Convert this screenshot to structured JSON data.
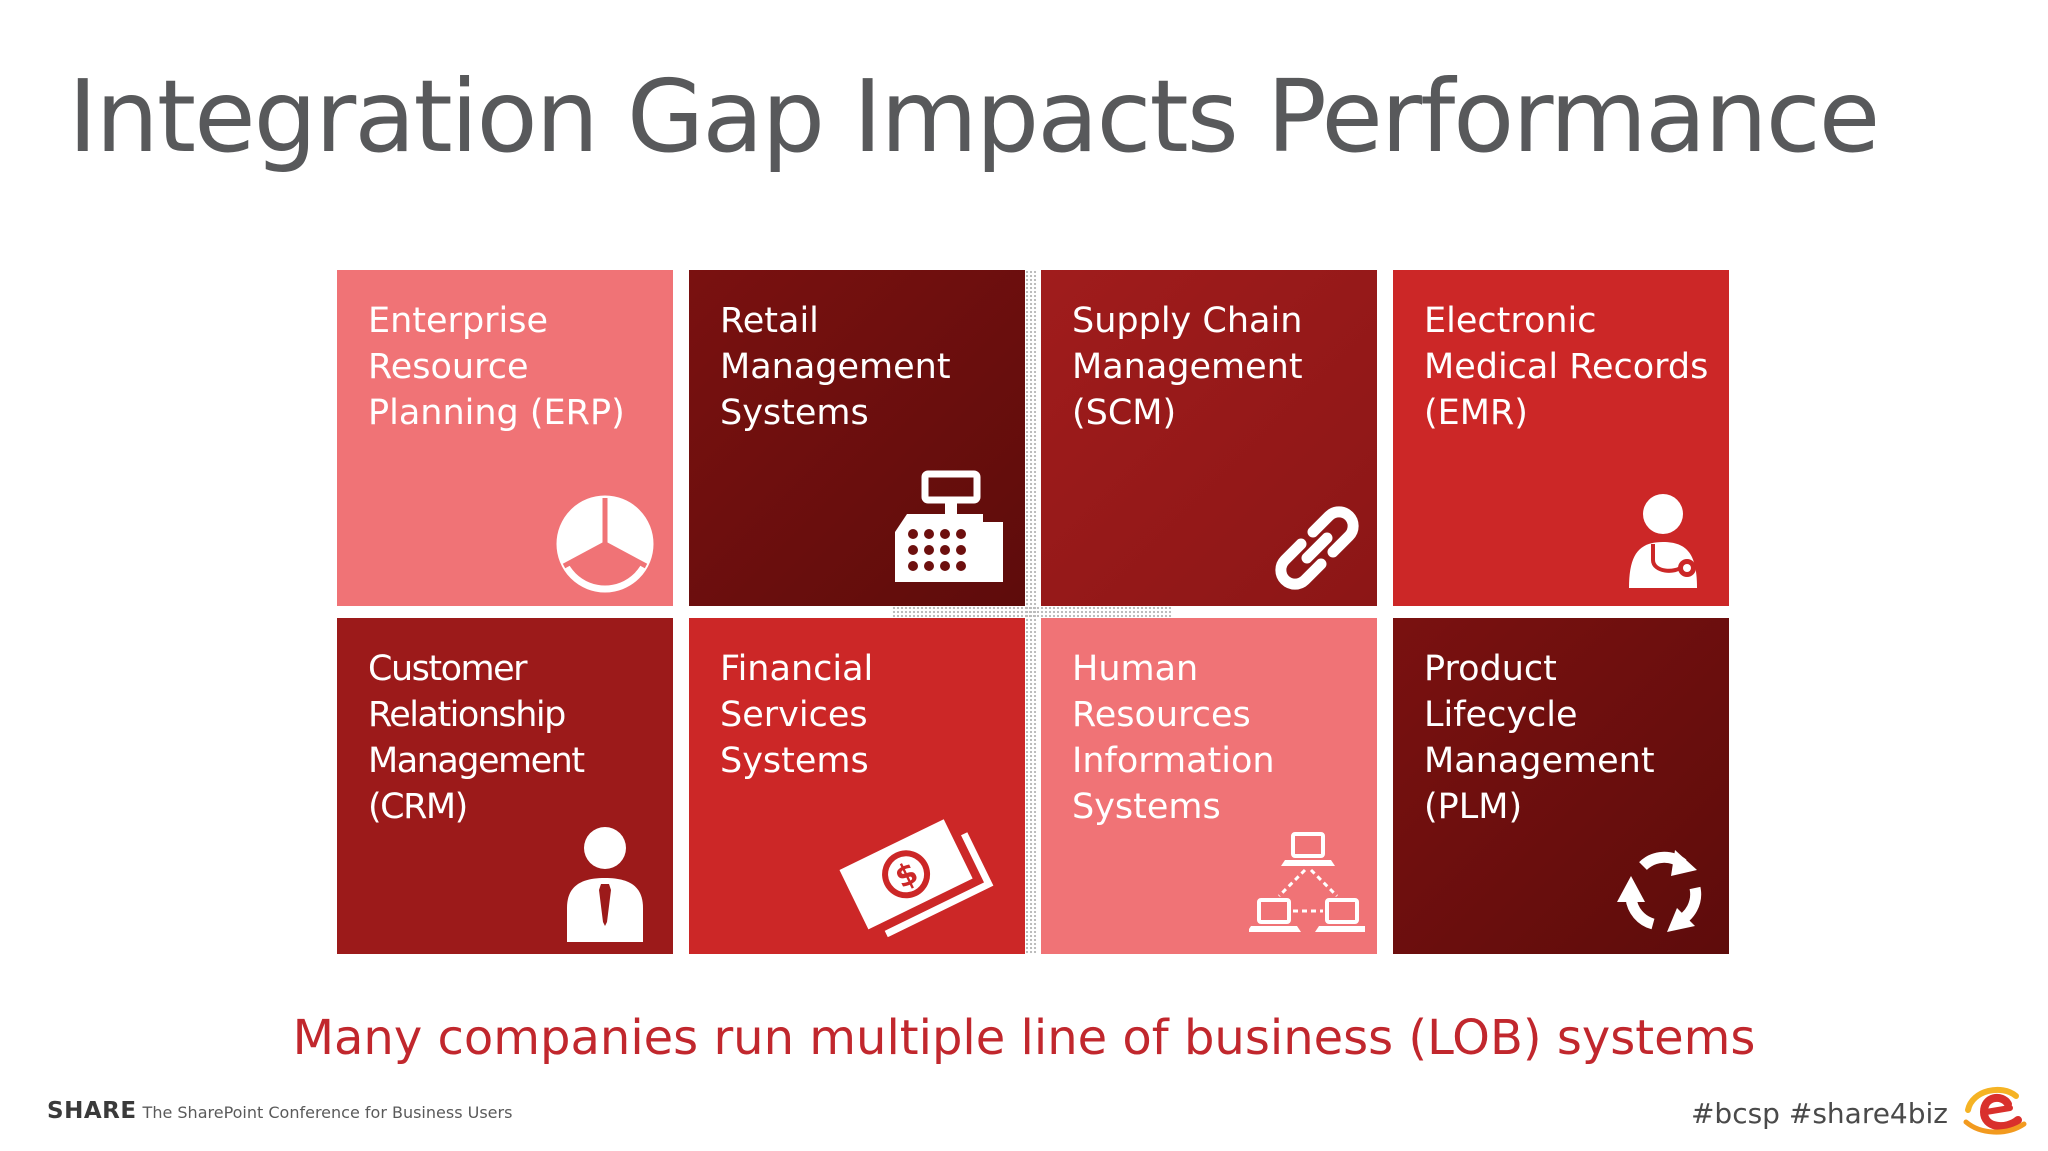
{
  "slide": {
    "title": "Integration Gap Impacts Performance",
    "subtitle": "Many companies run multiple line of business (LOB) systems",
    "footer": {
      "brand": "SHARE",
      "tagline": "The SharePoint Conference for Business Users",
      "hashtags": "#bcsp #share4biz"
    }
  },
  "tiles": [
    {
      "label": "Enterprise\nResource\nPlanning (ERP)",
      "icon": "pie-chart-icon",
      "color": "#f07376"
    },
    {
      "label": "Retail\nManagement\nSystems",
      "icon": "cash-register-icon",
      "color": "#6d0f0e"
    },
    {
      "label": "Supply Chain\nManagement\n(SCM)",
      "icon": "chain-link-icon",
      "color": "#9c1a1a"
    },
    {
      "label": "Electronic\nMedical Records\n(EMR)",
      "icon": "doctor-icon",
      "color": "#cc2727"
    },
    {
      "label": "Customer\nRelationship\nManagement\n(CRM)",
      "icon": "businessman-icon",
      "color": "#9c1a1a"
    },
    {
      "label": "Financial\nServices\nSystems",
      "icon": "money-icon",
      "color": "#cc2727"
    },
    {
      "label": "Human\nResources\nInformation\nSystems",
      "icon": "network-icon",
      "color": "#f07376"
    },
    {
      "label": "Product\nLifecycle\nManagement\n(PLM)",
      "icon": "recycle-arrows-icon",
      "color": "#6d0f0e"
    }
  ]
}
